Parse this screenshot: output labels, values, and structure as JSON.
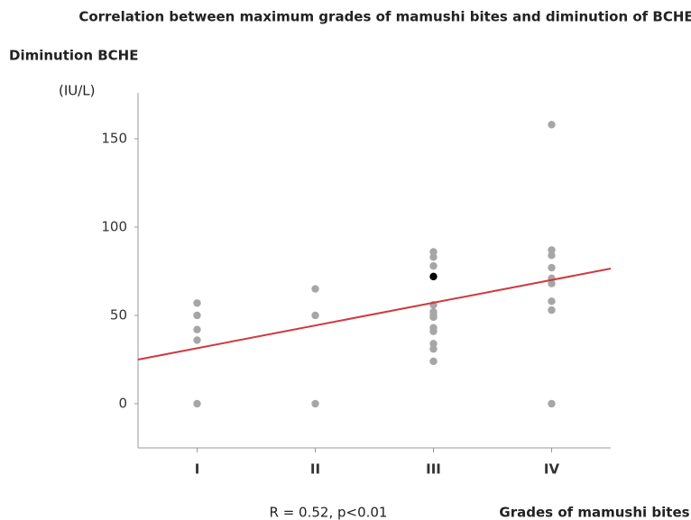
{
  "chart_data": {
    "type": "scatter",
    "title": "Correlation between maximum grades of mamushi bites and diminution of BCHE",
    "y_label": "Diminution BCHE",
    "y_unit": "(IU/L)",
    "x_label": "Grades of mamushi bites",
    "annotation": "R = 0.52, p<0.01",
    "categories": [
      "I",
      "II",
      "III",
      "IV"
    ],
    "values": [
      [
        57,
        50,
        42,
        36,
        0
      ],
      [
        65,
        50,
        0
      ],
      [
        86,
        83,
        78,
        56,
        52,
        50,
        49,
        43,
        41,
        34,
        31,
        24
      ],
      [
        158,
        87,
        84,
        77,
        71,
        68,
        58,
        53,
        0
      ]
    ],
    "color": "#a6a6a6",
    "highlight": {
      "x": "III",
      "value": 72,
      "color": "#000000"
    },
    "trend_line": {
      "color": "#d0383e",
      "values": [
        25,
        76.5
      ]
    },
    "ylim": [
      -25,
      176
    ],
    "yticks": [
      0,
      50,
      100,
      150
    ]
  }
}
